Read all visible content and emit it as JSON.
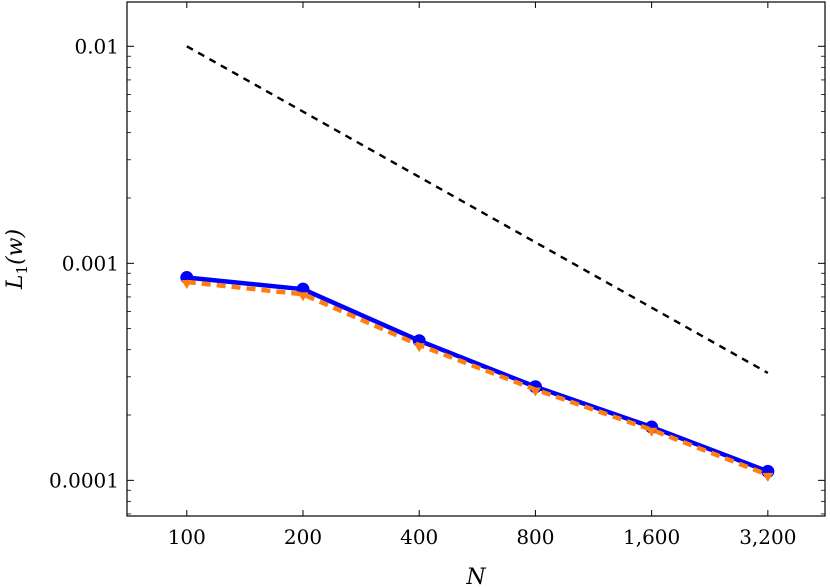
{
  "chart_data": {
    "type": "line",
    "title": "",
    "xlabel": "N",
    "ylabel": "L1(w)",
    "ylabel_parts": {
      "base": "L",
      "sub": "1",
      "rest": "(w)"
    },
    "x_scale": "log2",
    "y_scale": "log10",
    "x": [
      100,
      200,
      400,
      800,
      1600,
      3200
    ],
    "x_tick_labels": [
      "100",
      "200",
      "400",
      "800",
      "1,600",
      "3,200"
    ],
    "y_ticks": [
      0.0001,
      0.001,
      0.01
    ],
    "y_tick_labels": [
      "0.0001",
      "0.001",
      "0.01"
    ],
    "xlim": [
      70,
      4500
    ],
    "ylim": [
      6.85e-05,
      0.016
    ],
    "grid": false,
    "series": [
      {
        "color": "#0000ff",
        "style": "solid",
        "marker": "circle",
        "values": [
          0.00086,
          0.00076,
          0.00044,
          0.00027,
          0.000176,
          0.00011
        ]
      },
      {
        "color": "#ff7f0e",
        "style": "dashed",
        "marker": "triangle",
        "values": [
          0.00082,
          0.00072,
          0.00042,
          0.000262,
          0.000171,
          0.000106
        ]
      },
      {
        "color": "#000000",
        "style": "dashed",
        "marker": "none",
        "values": [
          0.01,
          0.005,
          0.0025,
          0.00125,
          0.000625,
          0.0003125
        ]
      }
    ]
  }
}
